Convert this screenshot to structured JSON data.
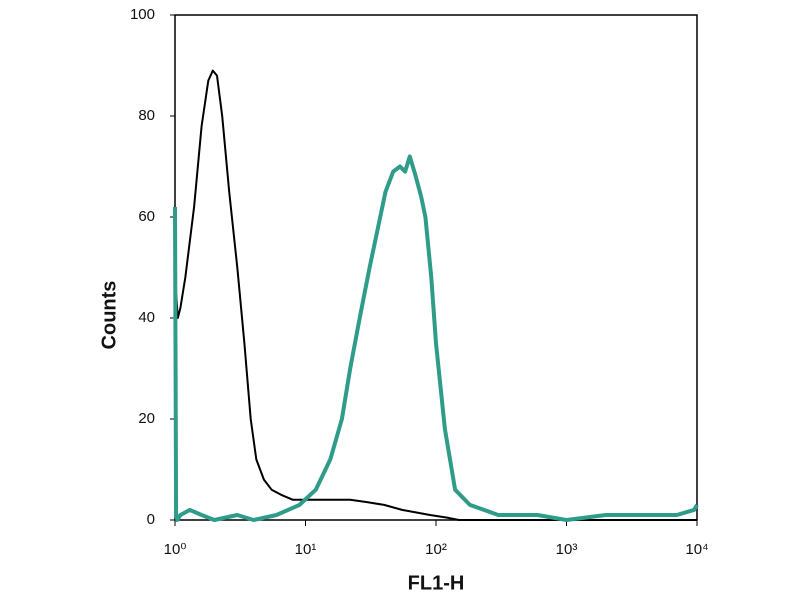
{
  "chart_data": {
    "type": "line",
    "xlabel": "FL1-H",
    "ylabel": "Counts",
    "xscale": "log",
    "xlim": [
      1,
      10000
    ],
    "xticks": [
      {
        "value": 1,
        "label": "10⁰"
      },
      {
        "value": 10,
        "label": "10¹"
      },
      {
        "value": 100,
        "label": "10²"
      },
      {
        "value": 1000,
        "label": "10³"
      },
      {
        "value": 10000,
        "label": "10⁴"
      }
    ],
    "ylim": [
      0,
      100
    ],
    "yticks": [
      0,
      20,
      40,
      60,
      80,
      100
    ],
    "series": [
      {
        "color": "#000000",
        "width": 2,
        "x": [
          1,
          1.02,
          1.05,
          1.1,
          1.2,
          1.4,
          1.6,
          1.8,
          1.95,
          2.1,
          2.3,
          2.6,
          3.0,
          3.4,
          3.8,
          4.2,
          4.8,
          5.5,
          6.5,
          8,
          10,
          13,
          17,
          22,
          30,
          40,
          55,
          70,
          90,
          120,
          150,
          200,
          500,
          10000
        ],
        "values": [
          62,
          45,
          40,
          42,
          48,
          62,
          78,
          87,
          89,
          88,
          80,
          65,
          50,
          35,
          20,
          12,
          8,
          6,
          5,
          4,
          4,
          4,
          4,
          4,
          3.5,
          3,
          2,
          1.5,
          1,
          0.5,
          0,
          0,
          0,
          0
        ]
      },
      {
        "color": "#2e9c88",
        "width": 4,
        "x": [
          1,
          1.02,
          1.04,
          1.1,
          1.3,
          1.6,
          2,
          3,
          4,
          6,
          9,
          12,
          15.5,
          19,
          22,
          26,
          31,
          36,
          41,
          47,
          53,
          58,
          63,
          70,
          77,
          83,
          92,
          100,
          117,
          140,
          182,
          300,
          600,
          1000,
          2000,
          4000,
          7000,
          9500,
          10000
        ],
        "values": [
          62,
          1,
          0,
          1,
          2,
          1,
          0,
          1,
          0,
          1,
          3,
          6,
          12,
          20,
          30,
          40,
          50,
          58,
          65,
          69,
          70,
          69,
          72,
          68,
          64,
          60,
          48,
          35,
          18,
          6,
          3,
          1,
          1,
          0,
          1,
          1,
          1,
          2,
          3
        ]
      }
    ]
  }
}
